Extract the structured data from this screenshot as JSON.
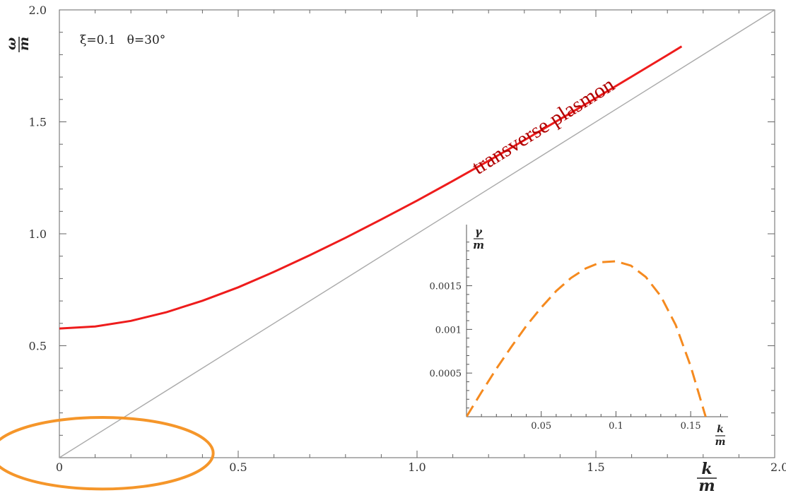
{
  "chart_data": [
    {
      "type": "line",
      "name": "main",
      "xlim": [
        0,
        2.0
      ],
      "ylim": [
        0,
        2.0
      ],
      "x_ticks": [
        0,
        0.5,
        1.0,
        1.5,
        2.0
      ],
      "x_tick_labels": [
        "0",
        "0.5",
        "1.0",
        "1.5",
        "2.0"
      ],
      "y_ticks": [
        0.5,
        1.0,
        1.5,
        2.0
      ],
      "y_tick_labels": [
        "0.5",
        "1.0",
        "1.5",
        "2.0"
      ],
      "xlabel": {
        "num": "k",
        "den": "m"
      },
      "ylabel": {
        "num": "ω",
        "den": "m"
      },
      "parameters": {
        "xi": "ξ=0.1",
        "theta": "θ=30°"
      },
      "grid": false,
      "series": [
        {
          "name": "transverse plasmon",
          "style": "solid",
          "color": "#ee1c1c",
          "x": [
            0,
            0.1,
            0.2,
            0.3,
            0.4,
            0.5,
            0.6,
            0.7,
            0.8,
            0.9,
            1.0,
            1.1,
            1.2,
            1.3,
            1.4,
            1.5,
            1.6,
            1.7,
            1.74
          ],
          "y": [
            0.577,
            0.586,
            0.611,
            0.65,
            0.701,
            0.761,
            0.83,
            0.904,
            0.982,
            1.064,
            1.148,
            1.236,
            1.326,
            1.418,
            1.512,
            1.606,
            1.702,
            1.798,
            1.837
          ]
        },
        {
          "style": "solid",
          "color": "#aaaaaa",
          "x": [
            0,
            2.0
          ],
          "y": [
            0,
            2.0
          ]
        }
      ],
      "annotations": [
        {
          "type": "ellipse",
          "color": "#f5962a",
          "cx": 0.12,
          "cy": 0.02,
          "rx": 0.31,
          "ry": 0.16
        }
      ]
    },
    {
      "type": "line",
      "name": "inset",
      "xlim": [
        0,
        0.175
      ],
      "ylim": [
        0,
        0.0022
      ],
      "x_ticks": [
        0.05,
        0.1,
        0.15
      ],
      "x_tick_labels": [
        "0.05",
        "0.1",
        "0.15"
      ],
      "y_ticks": [
        0.0005,
        0.001,
        0.0015
      ],
      "y_tick_labels": [
        "0.0005",
        "0.001",
        "0.0015"
      ],
      "xlabel": {
        "num": "k",
        "den": "m"
      },
      "ylabel": {
        "num": "γ",
        "den": "m"
      },
      "series": [
        {
          "style": "dashed",
          "color": "#f58a1f",
          "x": [
            0,
            0.01,
            0.02,
            0.03,
            0.04,
            0.05,
            0.06,
            0.07,
            0.08,
            0.09,
            0.1,
            0.11,
            0.12,
            0.13,
            0.14,
            0.15,
            0.155,
            0.16
          ],
          "y": [
            0,
            0.00028,
            0.00055,
            0.0008,
            0.00104,
            0.00125,
            0.00144,
            0.00159,
            0.0017,
            0.00177,
            0.00178,
            0.00173,
            0.0016,
            0.00138,
            0.00105,
            0.00058,
            0.00029,
            0
          ]
        }
      ]
    }
  ]
}
